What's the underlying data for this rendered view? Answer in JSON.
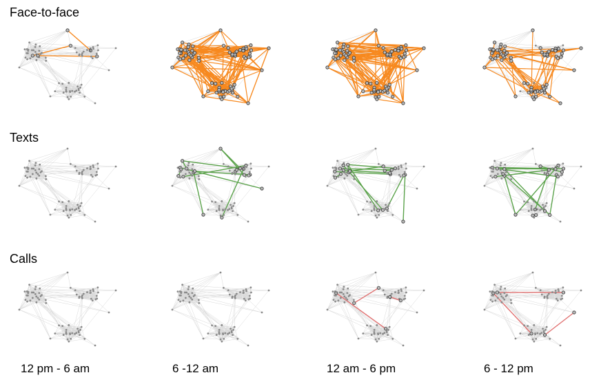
{
  "rows": [
    {
      "label": "Face-to-face",
      "type": "face",
      "color": "#f7891f",
      "activity": [
        "sparse",
        "dense",
        "dense",
        "medium"
      ]
    },
    {
      "label": "Texts",
      "type": "text",
      "color": "#5aa24a",
      "activity": [
        "none",
        "some",
        "some",
        "some"
      ]
    },
    {
      "label": "Calls",
      "type": "call",
      "color": "#e07070",
      "activity": [
        "none",
        "none",
        "few",
        "few"
      ]
    }
  ],
  "periods": [
    "12 pm  - 6 am",
    "6 -12 am",
    "12 am - 6 pm",
    "6 - 12 pm"
  ]
}
